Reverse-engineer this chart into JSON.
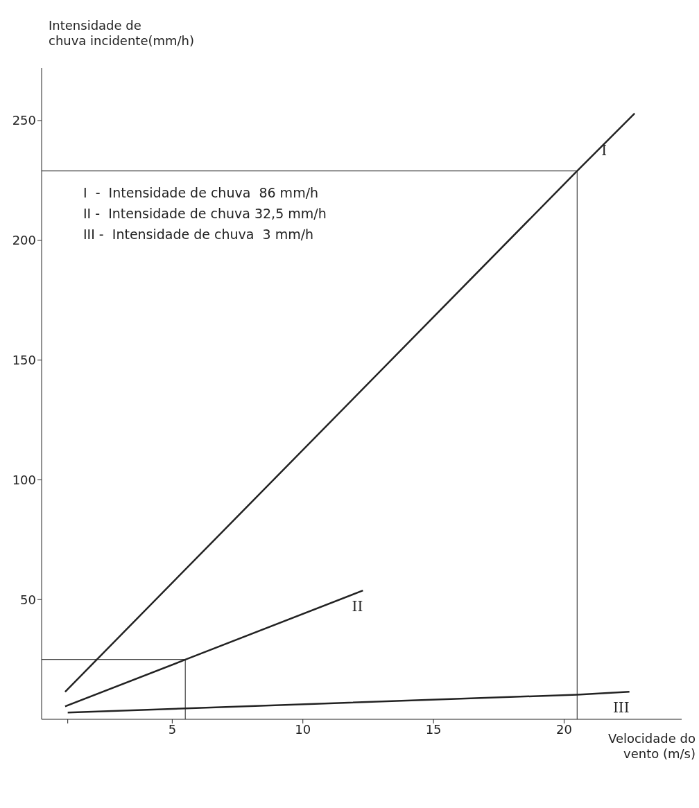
{
  "chart_data": {
    "type": "line",
    "xlabel": "Velocidade do vento (m/s)",
    "ylabel": "Intensidade de chuva incidente(mm/h)",
    "xlim": [
      0,
      24.5
    ],
    "xticks": [
      {
        "value": 1,
        "label": null
      },
      5,
      10,
      15,
      20
    ],
    "ylim": [
      0,
      272
    ],
    "yticks": [
      50,
      100,
      150,
      200,
      250
    ],
    "series": [
      {
        "name": "I",
        "color": "#222222",
        "x": [
          0.9,
          20.5,
          22.7
        ],
        "values": [
          11.5,
          229,
          253
        ]
      },
      {
        "name": "II",
        "color": "#222222",
        "x": [
          0.9,
          5.5,
          12.3
        ],
        "values": [
          5.4,
          24.9,
          53.8
        ]
      },
      {
        "name": "III",
        "color": "#222222",
        "x": [
          1,
          20.5,
          22.5
        ],
        "values": [
          2.8,
          10.3,
          11.5
        ]
      }
    ],
    "ref_lines": [
      {
        "axis": "y",
        "value": 229,
        "color": "#444444"
      },
      {
        "axis": "x",
        "value": 20.5,
        "color": "#444444"
      },
      {
        "axis": "y",
        "value": 25,
        "color": "#444444"
      },
      {
        "axis": "x",
        "value": 5.5,
        "color": "#444444"
      }
    ],
    "annotations": [
      "I  -  Intensidade de chuva  86 mm/h",
      "II -  Intensidade de chuva 32,5 mm/h",
      "III -  Intensidade de chuva  3 mm/h"
    ]
  }
}
